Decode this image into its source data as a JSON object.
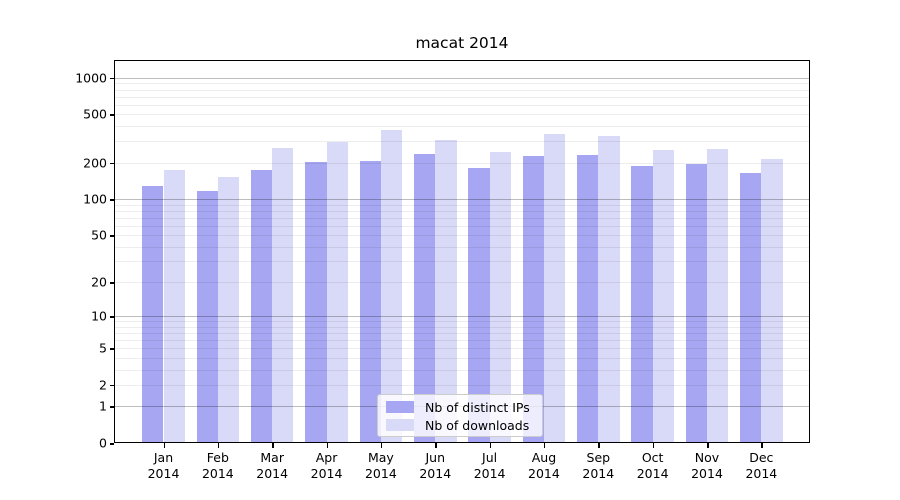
{
  "title": "macat 2014",
  "chart_data": {
    "type": "bar",
    "title": "macat 2014",
    "categories": [
      "Jan",
      "Feb",
      "Mar",
      "Apr",
      "May",
      "Jun",
      "Jul",
      "Aug",
      "Sep",
      "Oct",
      "Nov",
      "Dec"
    ],
    "x_year": "2014",
    "series": [
      {
        "name": "Nb of distinct IPs",
        "color": "#a6a6f2",
        "values": [
          129,
          116,
          173,
          203,
          207,
          238,
          181,
          228,
          232,
          186,
          196,
          165
        ]
      },
      {
        "name": "Nb of downloads",
        "color": "#d9d9f8",
        "values": [
          174,
          151,
          265,
          295,
          372,
          308,
          247,
          344,
          329,
          254,
          257,
          214
        ]
      }
    ],
    "yscale": "log1p",
    "ylim": [
      0,
      1400
    ],
    "y_ticks": [
      0,
      1,
      2,
      5,
      10,
      20,
      50,
      100,
      200,
      500,
      1000
    ],
    "y_major_gridlines": [
      1,
      10,
      100,
      1000
    ],
    "xlabel": "",
    "ylabel": "",
    "grid": true,
    "legend_position": "lower center"
  },
  "legend": {
    "items": [
      {
        "label": "Nb of distinct IPs",
        "color": "#a6a6f2"
      },
      {
        "label": "Nb of downloads",
        "color": "#d9d9f8"
      }
    ]
  }
}
